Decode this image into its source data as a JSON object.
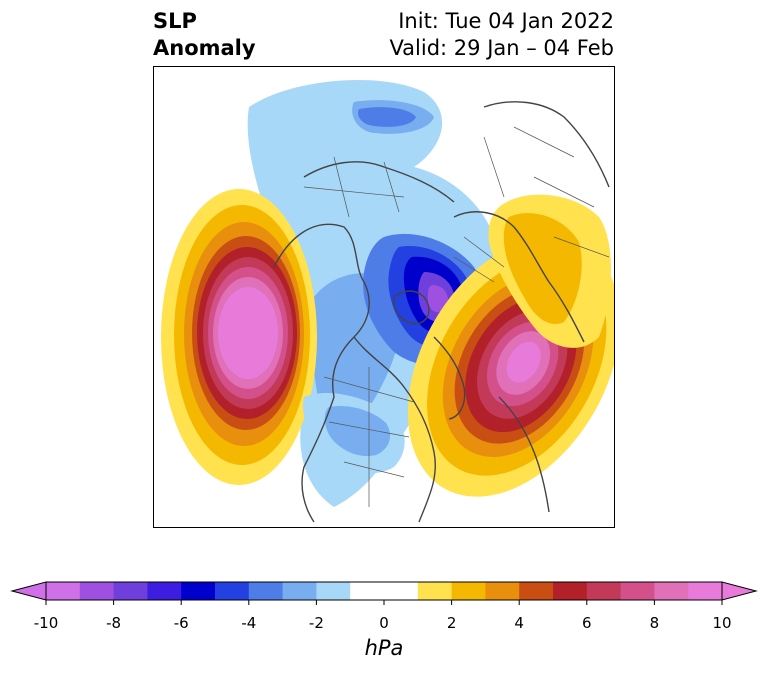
{
  "title": {
    "left_line1": "SLP",
    "left_line2": "Anomaly",
    "right_line1": "Init: Tue 04 Jan 2022",
    "right_line2": "Valid: 29 Jan – 04 Feb"
  },
  "colorbar": {
    "unit": "hPa",
    "min": -10,
    "max": 10,
    "tick_values": [
      -10,
      -8,
      -6,
      -4,
      -2,
      0,
      2,
      4,
      6,
      8,
      10
    ],
    "tick_labels": [
      "-10",
      "-8",
      "-6",
      "-4",
      "-2",
      "0",
      "2",
      "4",
      "6",
      "8",
      "10"
    ],
    "extend": "both",
    "colors": [
      "#d070e8",
      "#a050e0",
      "#6f3fdc",
      "#3d1ddf",
      "#0000cc",
      "#2340e0",
      "#4f7de8",
      "#78aef0",
      "#a8d8f8",
      "#ffffff",
      "#ffffff",
      "#ffe24e",
      "#f5b800",
      "#e8900e",
      "#c84e14",
      "#b2202a",
      "#c23a58",
      "#d4508a",
      "#e070b8",
      "#e87ada"
    ],
    "under_color": "#d070e8",
    "over_color": "#e87ada"
  },
  "map": {
    "projection": "north polar stereographic",
    "features": [
      {
        "name": "positive anomaly",
        "location": "northeast Pacific",
        "peak_hPa": 10
      },
      {
        "name": "positive anomaly",
        "location": "North Atlantic",
        "peak_hPa": 9
      },
      {
        "name": "positive anomaly",
        "location": "eastern Siberia",
        "peak_hPa": 4
      },
      {
        "name": "negative anomaly",
        "location": "Arctic / Barents-Kara Sea",
        "peak_hPa": -8
      },
      {
        "name": "negative anomaly",
        "location": "central Asia",
        "peak_hPa": -4
      },
      {
        "name": "negative anomaly",
        "location": "North America / Hudson Bay",
        "peak_hPa": -4
      }
    ]
  }
}
